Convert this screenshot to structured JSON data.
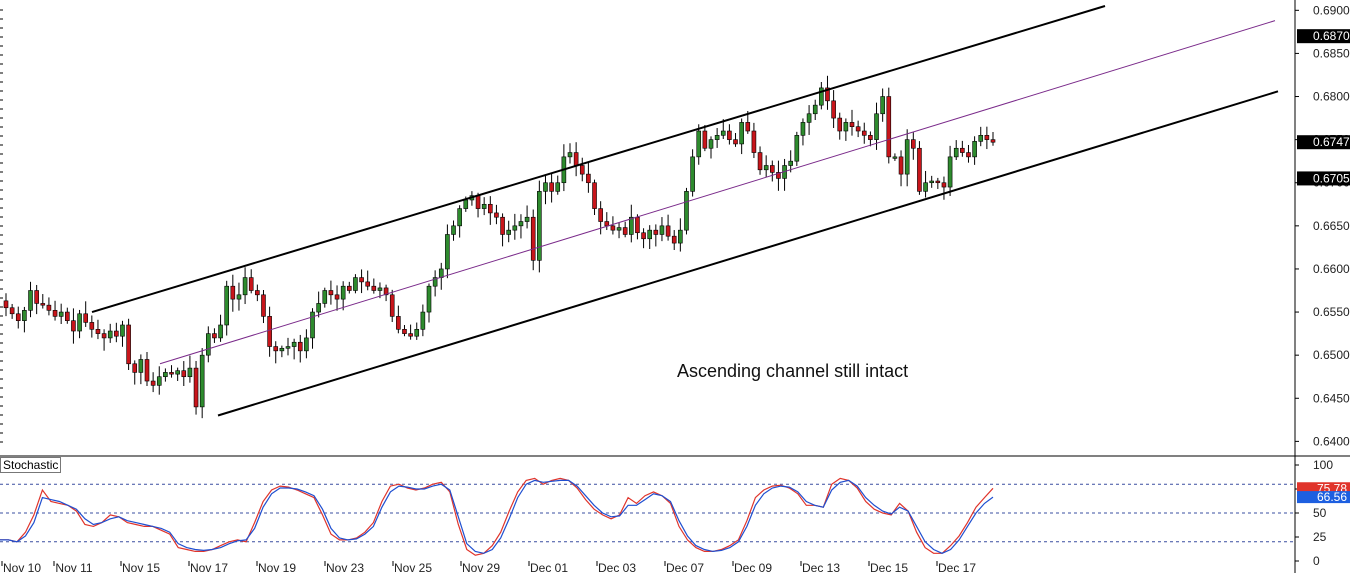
{
  "panel_label": "Stochastic",
  "annotation": "Ascending channel still intact",
  "colors": {
    "up_candle": "#2e8b2e",
    "down_candle": "#c8151b",
    "channel": "#000000",
    "midline": "#7a2a8a",
    "stoch_k": "#e0342b",
    "stoch_d": "#1f4fd0",
    "tag_bg": "#000000",
    "k_tag_bg": "#e0342b",
    "d_tag_bg": "#1d5fe0"
  },
  "chart_data": [
    {
      "type": "candlestick",
      "y_ticks": [
        "0.6900",
        "0.6850",
        "0.6800",
        "0.6750",
        "0.6700",
        "0.6650",
        "0.6600",
        "0.6550",
        "0.6500",
        "0.6450",
        "0.6400"
      ],
      "ylim": [
        0.639,
        0.6905
      ],
      "price_tags": [
        "0.6870",
        "0.6747",
        "0.6705"
      ],
      "x_labels": [
        "Nov 10",
        "Nov 11",
        "Nov 15",
        "Nov 17",
        "Nov 19",
        "Nov 23",
        "Nov 25",
        "Nov 29",
        "Dec 01",
        "Dec 03",
        "Dec 07",
        "Dec 09",
        "Dec 13",
        "Dec 15",
        "Dec 17"
      ],
      "channel": {
        "upper": [
          [
            0.655,
            0.6905
          ]
        ],
        "lower": [
          [
            0.643,
            0.6806
          ]
        ],
        "middle": [
          [
            0.649,
            0.6888
          ]
        ]
      },
      "annotation": "Ascending channel still intact",
      "closes": [
        0.6555,
        0.6548,
        0.654,
        0.6552,
        0.6575,
        0.656,
        0.6558,
        0.6552,
        0.6545,
        0.655,
        0.654,
        0.6528,
        0.6548,
        0.6538,
        0.653,
        0.6525,
        0.652,
        0.6528,
        0.6522,
        0.6535,
        0.649,
        0.648,
        0.6495,
        0.647,
        0.6465,
        0.6475,
        0.648,
        0.6478,
        0.6482,
        0.6475,
        0.6485,
        0.644,
        0.65,
        0.6525,
        0.652,
        0.6535,
        0.658,
        0.6565,
        0.657,
        0.659,
        0.6575,
        0.657,
        0.6545,
        0.651,
        0.6505,
        0.6508,
        0.651,
        0.6515,
        0.6505,
        0.652,
        0.655,
        0.656,
        0.6575,
        0.657,
        0.6565,
        0.658,
        0.6575,
        0.659,
        0.6585,
        0.658,
        0.6575,
        0.6578,
        0.657,
        0.6545,
        0.653,
        0.6525,
        0.6522,
        0.653,
        0.655,
        0.658,
        0.659,
        0.66,
        0.664,
        0.665,
        0.667,
        0.668,
        0.6685,
        0.667,
        0.6675,
        0.6665,
        0.666,
        0.664,
        0.6645,
        0.665,
        0.6655,
        0.666,
        0.661,
        0.669,
        0.67,
        0.669,
        0.67,
        0.673,
        0.6735,
        0.672,
        0.671,
        0.67,
        0.667,
        0.6655,
        0.665,
        0.6645,
        0.6648,
        0.664,
        0.666,
        0.6642,
        0.6635,
        0.6645,
        0.664,
        0.665,
        0.6638,
        0.663,
        0.6645,
        0.669,
        0.673,
        0.676,
        0.674,
        0.675,
        0.6755,
        0.676,
        0.675,
        0.6745,
        0.677,
        0.676,
        0.6735,
        0.6715,
        0.672,
        0.6712,
        0.6705,
        0.672,
        0.6725,
        0.6755,
        0.677,
        0.678,
        0.679,
        0.681,
        0.6795,
        0.6775,
        0.676,
        0.677,
        0.6765,
        0.676,
        0.6755,
        0.675,
        0.678,
        0.68,
        0.673,
        0.673,
        0.671,
        0.675,
        0.674,
        0.669,
        0.67,
        0.6702,
        0.67,
        0.6695,
        0.673,
        0.674,
        0.6735,
        0.673,
        0.6748,
        0.6755,
        0.675,
        0.6747
      ]
    },
    {
      "type": "line",
      "title": "Stochastic",
      "y_ticks": [
        "100",
        "75",
        "50",
        "25",
        "0"
      ],
      "ylim": [
        0,
        100
      ],
      "levels": [
        80,
        50,
        20
      ],
      "value_tags": [
        "75.78",
        "66.56"
      ],
      "series": [
        {
          "values": [
            22,
            22,
            20,
            30,
            48,
            74,
            62,
            60,
            58,
            52,
            38,
            36,
            40,
            48,
            46,
            40,
            38,
            36,
            36,
            32,
            28,
            14,
            12,
            10,
            10,
            12,
            16,
            20,
            22,
            20,
            40,
            62,
            74,
            78,
            77,
            74,
            70,
            66,
            48,
            28,
            22,
            22,
            24,
            30,
            40,
            62,
            78,
            80,
            76,
            74,
            76,
            80,
            82,
            72,
            38,
            12,
            6,
            8,
            16,
            30,
            52,
            72,
            84,
            86,
            80,
            84,
            86,
            84,
            76,
            64,
            54,
            48,
            44,
            48,
            66,
            60,
            68,
            72,
            68,
            60,
            36,
            22,
            14,
            10,
            10,
            12,
            16,
            22,
            42,
            66,
            74,
            78,
            79,
            76,
            70,
            58,
            58,
            56,
            80,
            86,
            84,
            76,
            62,
            54,
            50,
            48,
            60,
            52,
            30,
            14,
            8,
            8,
            16,
            26,
            40,
            56,
            66,
            75.78
          ]
        },
        {
          "values": [
            22,
            22,
            20,
            26,
            40,
            66,
            64,
            62,
            58,
            54,
            44,
            38,
            40,
            44,
            46,
            42,
            40,
            38,
            36,
            34,
            30,
            18,
            14,
            12,
            11,
            12,
            14,
            18,
            21,
            22,
            34,
            56,
            70,
            76,
            76,
            75,
            72,
            68,
            54,
            34,
            24,
            22,
            23,
            28,
            36,
            56,
            72,
            78,
            77,
            75,
            75,
            78,
            80,
            74,
            46,
            18,
            10,
            8,
            12,
            24,
            44,
            66,
            80,
            84,
            82,
            83,
            84,
            84,
            78,
            68,
            58,
            50,
            46,
            47,
            58,
            58,
            64,
            70,
            68,
            62,
            42,
            26,
            16,
            12,
            10,
            11,
            14,
            20,
            36,
            58,
            70,
            76,
            78,
            77,
            72,
            62,
            58,
            56,
            74,
            82,
            84,
            78,
            66,
            58,
            52,
            49,
            56,
            52,
            36,
            20,
            12,
            8,
            12,
            22,
            36,
            50,
            60,
            66.56
          ]
        }
      ]
    }
  ]
}
